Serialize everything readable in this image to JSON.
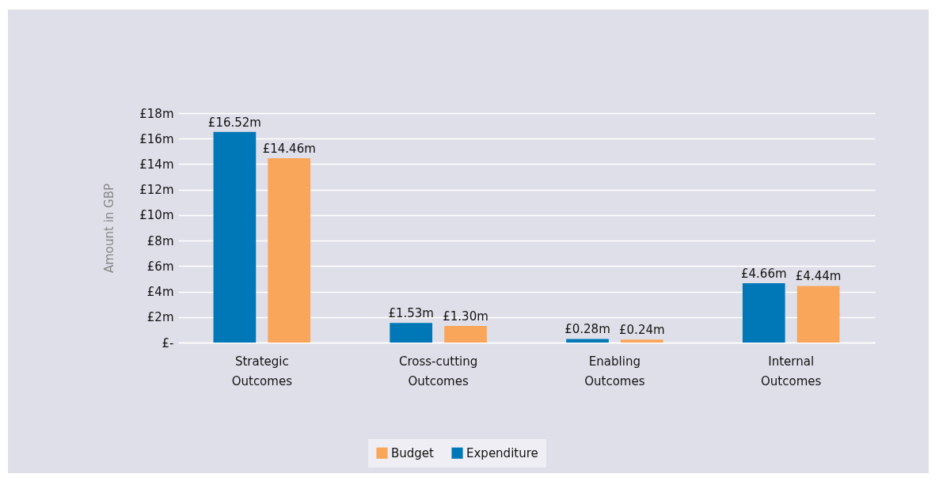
{
  "chart_data": {
    "type": "bar",
    "ylabel": "Amount in GBP",
    "categories": [
      "Strategic Outcomes",
      "Cross-cutting Outcomes",
      "Enabling Outcomes",
      "Internal Outcomes"
    ],
    "series": [
      {
        "name": "Expenditure",
        "color": "#0077b6",
        "values": [
          16.52,
          1.53,
          0.28,
          4.66
        ],
        "value_labels": [
          "£16.52m",
          "£1.53m",
          "£0.28m",
          "£4.66m"
        ]
      },
      {
        "name": "Budget",
        "color": "#f9a55a",
        "values": [
          14.46,
          1.3,
          0.24,
          4.44
        ],
        "value_labels": [
          "£14.46m",
          "£1.30m",
          "£0.24m",
          "£4.44m"
        ]
      }
    ],
    "ylim": [
      0,
      18
    ],
    "yticks": [
      {
        "value": 0,
        "label": "£-"
      },
      {
        "value": 2,
        "label": "£2m"
      },
      {
        "value": 4,
        "label": "£4m"
      },
      {
        "value": 6,
        "label": "£6m"
      },
      {
        "value": 8,
        "label": "£8m"
      },
      {
        "value": 10,
        "label": "£10m"
      },
      {
        "value": 12,
        "label": "£12m"
      },
      {
        "value": 14,
        "label": "£14m"
      },
      {
        "value": 16,
        "label": "£16m"
      },
      {
        "value": 18,
        "label": "£18m"
      }
    ],
    "grid": "y",
    "legend": "bottom"
  }
}
